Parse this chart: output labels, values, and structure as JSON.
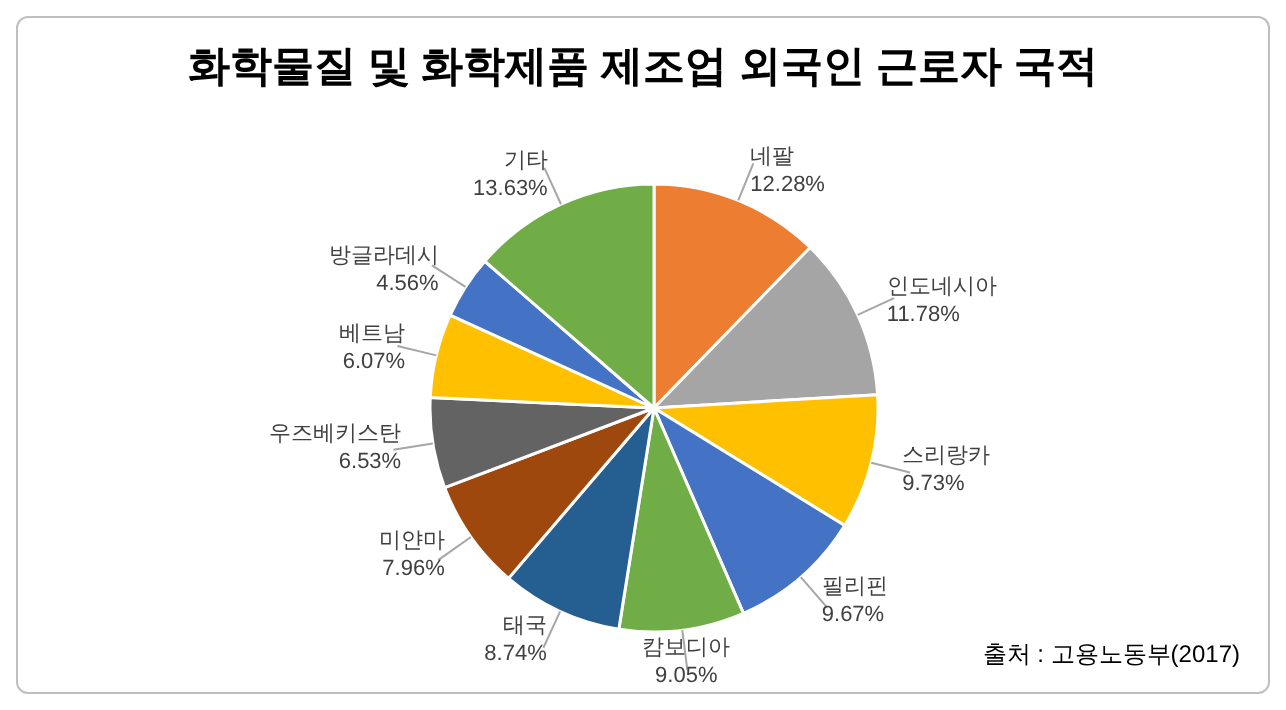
{
  "chart_data": {
    "type": "pie",
    "title": "화학물질 및 화학제품 제조업 외국인 근로자 국적",
    "categories": [
      "네팔",
      "인도네시아",
      "스리랑카",
      "필리핀",
      "캄보디아",
      "태국",
      "미얀마",
      "우즈베키스탄",
      "베트남",
      "방글라데시",
      "기타"
    ],
    "values": [
      12.28,
      11.78,
      9.73,
      9.67,
      9.05,
      8.74,
      7.96,
      6.53,
      6.07,
      4.56,
      13.63
    ],
    "colors": [
      "#ed7d31",
      "#a5a5a5",
      "#ffc000",
      "#4472c4",
      "#70ad47",
      "#255e91",
      "#9e480e",
      "#636363",
      "#ffc000",
      "#4472c4",
      "#70ad47"
    ],
    "value_labels": [
      "12.28%",
      "11.78%",
      "9.73%",
      "9.67%",
      "9.05%",
      "8.74%",
      "7.96%",
      "6.53%",
      "6.07%",
      "4.56%",
      "13.63%"
    ],
    "legend": false,
    "annotations": [
      "출처 : 고용노동부(2017)"
    ]
  }
}
